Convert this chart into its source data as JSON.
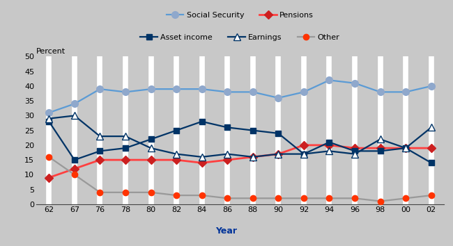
{
  "year_labels": [
    "62",
    "67",
    "76",
    "78",
    "80",
    "82",
    "84",
    "86",
    "88",
    "90",
    "92",
    "94",
    "96",
    "98",
    "00",
    "02"
  ],
  "social_security": [
    31,
    34,
    39,
    38,
    39,
    39,
    39,
    38,
    38,
    36,
    38,
    42,
    41,
    38,
    38,
    40
  ],
  "pensions": [
    9,
    12,
    15,
    15,
    15,
    15,
    14,
    15,
    16,
    17,
    20,
    20,
    19,
    19,
    19,
    19
  ],
  "asset_income": [
    28,
    15,
    18,
    19,
    22,
    25,
    28,
    26,
    25,
    24,
    17,
    21,
    18,
    18,
    19,
    14
  ],
  "earnings": [
    29,
    30,
    23,
    23,
    19,
    17,
    16,
    17,
    16,
    17,
    17,
    18,
    17,
    22,
    19,
    26
  ],
  "other": [
    16,
    10,
    4,
    4,
    4,
    3,
    3,
    2,
    2,
    2,
    2,
    2,
    2,
    1,
    2,
    3
  ],
  "title_percent": "Percent",
  "xlabel": "Year",
  "ylim": [
    0,
    50
  ],
  "yticks": [
    0,
    5,
    10,
    15,
    20,
    25,
    30,
    35,
    40,
    45,
    50
  ],
  "fig_bg_color": "#c8c8c8",
  "plot_bg": "#c8c8c8",
  "stripe_color": "#ffffff",
  "bottom_band_color": "#c8c8c8",
  "ss_line_color": "#5b9bd5",
  "ss_marker_color": "#8fa8cc",
  "pensions_line_color": "#ff4040",
  "pensions_marker_color": "#cc2020",
  "ai_color": "#003366",
  "earnings_color": "#003366",
  "other_line_color": "#999999",
  "other_marker_color": "#ff3300",
  "legend_fontsize": 8,
  "tick_fontsize": 8
}
